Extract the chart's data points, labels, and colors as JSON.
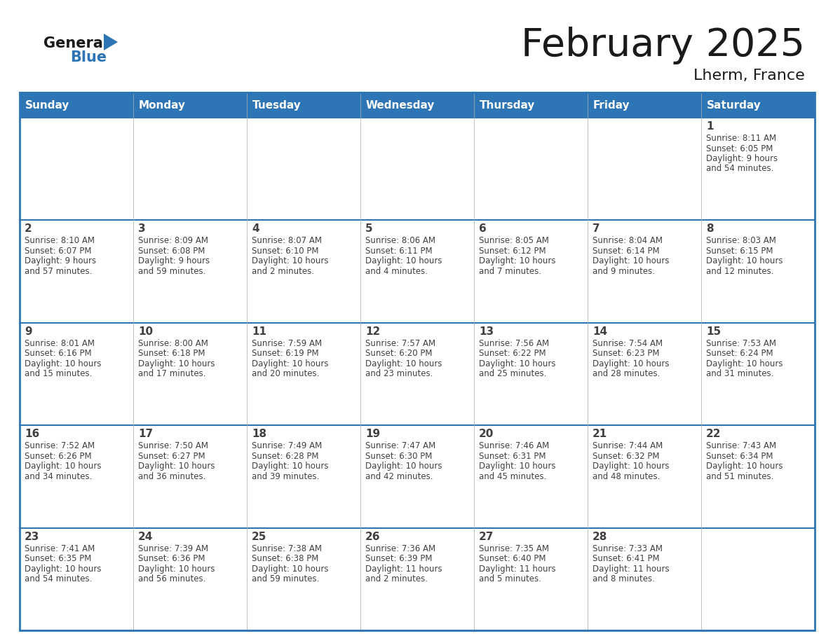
{
  "title": "February 2025",
  "subtitle": "Lherm, France",
  "header_bg": "#2e75b6",
  "header_text_color": "#ffffff",
  "cell_bg": "#ffffff",
  "day_names": [
    "Sunday",
    "Monday",
    "Tuesday",
    "Wednesday",
    "Thursday",
    "Friday",
    "Saturday"
  ],
  "days": [
    {
      "day": 1,
      "col": 6,
      "row": 0,
      "sunrise": "8:11 AM",
      "sunset": "6:05 PM",
      "daylight": "9 hours and 54 minutes"
    },
    {
      "day": 2,
      "col": 0,
      "row": 1,
      "sunrise": "8:10 AM",
      "sunset": "6:07 PM",
      "daylight": "9 hours and 57 minutes"
    },
    {
      "day": 3,
      "col": 1,
      "row": 1,
      "sunrise": "8:09 AM",
      "sunset": "6:08 PM",
      "daylight": "9 hours and 59 minutes"
    },
    {
      "day": 4,
      "col": 2,
      "row": 1,
      "sunrise": "8:07 AM",
      "sunset": "6:10 PM",
      "daylight": "10 hours and 2 minutes"
    },
    {
      "day": 5,
      "col": 3,
      "row": 1,
      "sunrise": "8:06 AM",
      "sunset": "6:11 PM",
      "daylight": "10 hours and 4 minutes"
    },
    {
      "day": 6,
      "col": 4,
      "row": 1,
      "sunrise": "8:05 AM",
      "sunset": "6:12 PM",
      "daylight": "10 hours and 7 minutes"
    },
    {
      "day": 7,
      "col": 5,
      "row": 1,
      "sunrise": "8:04 AM",
      "sunset": "6:14 PM",
      "daylight": "10 hours and 9 minutes"
    },
    {
      "day": 8,
      "col": 6,
      "row": 1,
      "sunrise": "8:03 AM",
      "sunset": "6:15 PM",
      "daylight": "10 hours and 12 minutes"
    },
    {
      "day": 9,
      "col": 0,
      "row": 2,
      "sunrise": "8:01 AM",
      "sunset": "6:16 PM",
      "daylight": "10 hours and 15 minutes"
    },
    {
      "day": 10,
      "col": 1,
      "row": 2,
      "sunrise": "8:00 AM",
      "sunset": "6:18 PM",
      "daylight": "10 hours and 17 minutes"
    },
    {
      "day": 11,
      "col": 2,
      "row": 2,
      "sunrise": "7:59 AM",
      "sunset": "6:19 PM",
      "daylight": "10 hours and 20 minutes"
    },
    {
      "day": 12,
      "col": 3,
      "row": 2,
      "sunrise": "7:57 AM",
      "sunset": "6:20 PM",
      "daylight": "10 hours and 23 minutes"
    },
    {
      "day": 13,
      "col": 4,
      "row": 2,
      "sunrise": "7:56 AM",
      "sunset": "6:22 PM",
      "daylight": "10 hours and 25 minutes"
    },
    {
      "day": 14,
      "col": 5,
      "row": 2,
      "sunrise": "7:54 AM",
      "sunset": "6:23 PM",
      "daylight": "10 hours and 28 minutes"
    },
    {
      "day": 15,
      "col": 6,
      "row": 2,
      "sunrise": "7:53 AM",
      "sunset": "6:24 PM",
      "daylight": "10 hours and 31 minutes"
    },
    {
      "day": 16,
      "col": 0,
      "row": 3,
      "sunrise": "7:52 AM",
      "sunset": "6:26 PM",
      "daylight": "10 hours and 34 minutes"
    },
    {
      "day": 17,
      "col": 1,
      "row": 3,
      "sunrise": "7:50 AM",
      "sunset": "6:27 PM",
      "daylight": "10 hours and 36 minutes"
    },
    {
      "day": 18,
      "col": 2,
      "row": 3,
      "sunrise": "7:49 AM",
      "sunset": "6:28 PM",
      "daylight": "10 hours and 39 minutes"
    },
    {
      "day": 19,
      "col": 3,
      "row": 3,
      "sunrise": "7:47 AM",
      "sunset": "6:30 PM",
      "daylight": "10 hours and 42 minutes"
    },
    {
      "day": 20,
      "col": 4,
      "row": 3,
      "sunrise": "7:46 AM",
      "sunset": "6:31 PM",
      "daylight": "10 hours and 45 minutes"
    },
    {
      "day": 21,
      "col": 5,
      "row": 3,
      "sunrise": "7:44 AM",
      "sunset": "6:32 PM",
      "daylight": "10 hours and 48 minutes"
    },
    {
      "day": 22,
      "col": 6,
      "row": 3,
      "sunrise": "7:43 AM",
      "sunset": "6:34 PM",
      "daylight": "10 hours and 51 minutes"
    },
    {
      "day": 23,
      "col": 0,
      "row": 4,
      "sunrise": "7:41 AM",
      "sunset": "6:35 PM",
      "daylight": "10 hours and 54 minutes"
    },
    {
      "day": 24,
      "col": 1,
      "row": 4,
      "sunrise": "7:39 AM",
      "sunset": "6:36 PM",
      "daylight": "10 hours and 56 minutes"
    },
    {
      "day": 25,
      "col": 2,
      "row": 4,
      "sunrise": "7:38 AM",
      "sunset": "6:38 PM",
      "daylight": "10 hours and 59 minutes"
    },
    {
      "day": 26,
      "col": 3,
      "row": 4,
      "sunrise": "7:36 AM",
      "sunset": "6:39 PM",
      "daylight": "11 hours and 2 minutes"
    },
    {
      "day": 27,
      "col": 4,
      "row": 4,
      "sunrise": "7:35 AM",
      "sunset": "6:40 PM",
      "daylight": "11 hours and 5 minutes"
    },
    {
      "day": 28,
      "col": 5,
      "row": 4,
      "sunrise": "7:33 AM",
      "sunset": "6:41 PM",
      "daylight": "11 hours and 8 minutes"
    }
  ],
  "num_rows": 5,
  "num_cols": 7,
  "text_color": "#404040",
  "border_color": "#2e75b6",
  "line_color_dark": "#2e75b6",
  "day_num_color": "#404040",
  "info_text_color": "#404040",
  "bg_color": "#ffffff"
}
